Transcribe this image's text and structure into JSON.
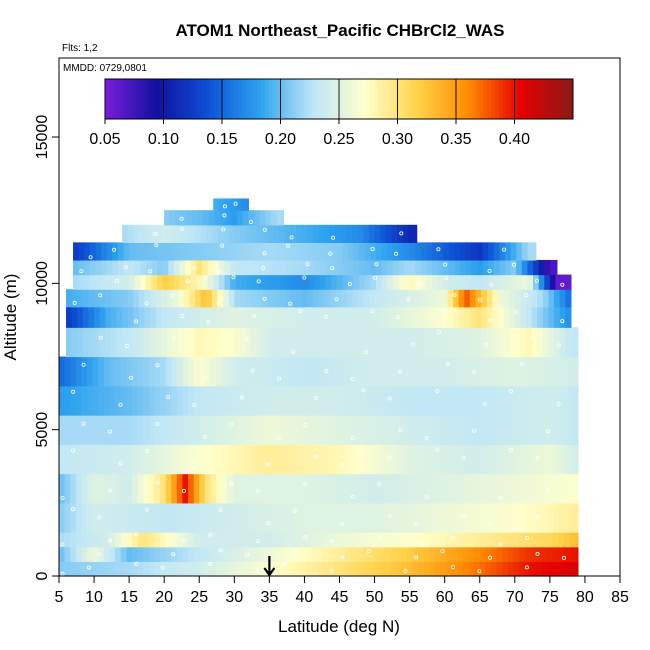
{
  "chart_data": {
    "type": "heatmap",
    "title": "ATOM1 Northeast_Pacific CHBrCl2_WAS",
    "annotations": [
      "Flts: 1,2",
      "MMDD: 0729,0801"
    ],
    "xlabel": "Latitude (deg N)",
    "ylabel": "Altitude (m)",
    "xlim": [
      5,
      85
    ],
    "ylim": [
      0,
      17700
    ],
    "x_ticks": [
      "5",
      "10",
      "15",
      "20",
      "25",
      "30",
      "35",
      "40",
      "45",
      "50",
      "55",
      "60",
      "65",
      "70",
      "75",
      "80",
      "85"
    ],
    "y_ticks": [
      "0",
      "5000",
      "10000",
      "15000"
    ],
    "colorbar": {
      "range": [
        0.05,
        0.45
      ],
      "ticks": [
        "0.05",
        "0.10",
        "0.15",
        "0.20",
        "0.25",
        "0.30",
        "0.35",
        "0.40"
      ],
      "colors": [
        "#7a1fd9",
        "#1010a0",
        "#0d52d6",
        "#2fa3ef",
        "#bfe6f7",
        "#ffffcc",
        "#ffd24a",
        "#ff8a00",
        "#e60000",
        "#8b1a1a"
      ]
    },
    "marker": {
      "label": "arrow",
      "x": 35
    },
    "altitude_bands": [
      {
        "alt": [
          0,
          500
        ],
        "lat": [
          5,
          79
        ],
        "values": [
          [
            5,
            0.21
          ],
          [
            15,
            0.22
          ],
          [
            25,
            0.24
          ],
          [
            35,
            0.27
          ],
          [
            45,
            0.3
          ],
          [
            55,
            0.33
          ],
          [
            65,
            0.37
          ],
          [
            72,
            0.4
          ],
          [
            79,
            0.41
          ]
        ]
      },
      {
        "alt": [
          500,
          1000
        ],
        "lat": [
          5,
          79
        ],
        "values": [
          [
            5,
            0.2
          ],
          [
            10,
            0.26
          ],
          [
            15,
            0.2
          ],
          [
            25,
            0.23
          ],
          [
            35,
            0.26
          ],
          [
            45,
            0.29
          ],
          [
            55,
            0.32
          ],
          [
            65,
            0.36
          ],
          [
            72,
            0.39
          ],
          [
            79,
            0.4
          ]
        ]
      },
      {
        "alt": [
          1000,
          1500
        ],
        "lat": [
          5,
          79
        ],
        "values": [
          [
            5,
            0.22
          ],
          [
            12,
            0.24
          ],
          [
            17,
            0.3
          ],
          [
            25,
            0.24
          ],
          [
            35,
            0.24
          ],
          [
            45,
            0.26
          ],
          [
            55,
            0.27
          ],
          [
            65,
            0.29
          ],
          [
            75,
            0.31
          ],
          [
            79,
            0.33
          ]
        ]
      },
      {
        "alt": [
          1500,
          2500
        ],
        "lat": [
          5,
          79
        ],
        "values": [
          [
            5,
            0.21
          ],
          [
            10,
            0.24
          ],
          [
            20,
            0.23
          ],
          [
            30,
            0.24
          ],
          [
            40,
            0.25
          ],
          [
            50,
            0.25
          ],
          [
            60,
            0.26
          ],
          [
            70,
            0.27
          ],
          [
            79,
            0.29
          ]
        ]
      },
      {
        "alt": [
          2500,
          3500
        ],
        "lat": [
          5,
          79
        ],
        "values": [
          [
            5,
            0.2
          ],
          [
            10,
            0.25
          ],
          [
            15,
            0.24
          ],
          [
            20,
            0.3
          ],
          [
            23,
            0.4
          ],
          [
            26,
            0.3
          ],
          [
            30,
            0.25
          ],
          [
            40,
            0.25
          ],
          [
            50,
            0.24
          ],
          [
            60,
            0.25
          ],
          [
            70,
            0.26
          ],
          [
            79,
            0.27
          ]
        ]
      },
      {
        "alt": [
          3500,
          4500
        ],
        "lat": [
          5,
          79
        ],
        "values": [
          [
            5,
            0.23
          ],
          [
            15,
            0.24
          ],
          [
            25,
            0.27
          ],
          [
            35,
            0.29
          ],
          [
            45,
            0.28
          ],
          [
            55,
            0.25
          ],
          [
            65,
            0.24
          ],
          [
            75,
            0.26
          ],
          [
            79,
            0.24
          ]
        ]
      },
      {
        "alt": [
          4500,
          5500
        ],
        "lat": [
          5,
          79
        ],
        "values": [
          [
            5,
            0.22
          ],
          [
            15,
            0.22
          ],
          [
            25,
            0.24
          ],
          [
            35,
            0.26
          ],
          [
            45,
            0.25
          ],
          [
            55,
            0.24
          ],
          [
            65,
            0.23
          ],
          [
            75,
            0.24
          ],
          [
            79,
            0.23
          ]
        ]
      },
      {
        "alt": [
          5500,
          6500
        ],
        "lat": [
          5,
          79
        ],
        "values": [
          [
            5,
            0.18
          ],
          [
            15,
            0.2
          ],
          [
            25,
            0.23
          ],
          [
            35,
            0.24
          ],
          [
            45,
            0.24
          ],
          [
            55,
            0.23
          ],
          [
            65,
            0.23
          ],
          [
            75,
            0.24
          ],
          [
            79,
            0.23
          ]
        ]
      },
      {
        "alt": [
          6500,
          7500
        ],
        "lat": [
          5,
          79
        ],
        "values": [
          [
            5,
            0.15
          ],
          [
            12,
            0.2
          ],
          [
            20,
            0.22
          ],
          [
            25,
            0.27
          ],
          [
            30,
            0.24
          ],
          [
            40,
            0.23
          ],
          [
            50,
            0.24
          ],
          [
            60,
            0.24
          ],
          [
            70,
            0.25
          ],
          [
            79,
            0.24
          ]
        ]
      },
      {
        "alt": [
          7500,
          8500
        ],
        "lat": [
          6,
          79
        ],
        "values": [
          [
            6,
            0.21
          ],
          [
            15,
            0.23
          ],
          [
            25,
            0.28
          ],
          [
            30,
            0.27
          ],
          [
            35,
            0.24
          ],
          [
            45,
            0.24
          ],
          [
            55,
            0.24
          ],
          [
            65,
            0.25
          ],
          [
            72,
            0.28
          ],
          [
            78,
            0.23
          ]
        ]
      },
      {
        "alt": [
          8500,
          9200
        ],
        "lat": [
          6,
          78
        ],
        "values": [
          [
            6,
            0.12
          ],
          [
            12,
            0.19
          ],
          [
            20,
            0.23
          ],
          [
            30,
            0.25
          ],
          [
            40,
            0.24
          ],
          [
            50,
            0.24
          ],
          [
            60,
            0.27
          ],
          [
            65,
            0.3
          ],
          [
            72,
            0.23
          ],
          [
            78,
            0.17
          ]
        ]
      },
      {
        "alt": [
          9200,
          9800
        ],
        "lat": [
          6,
          78
        ],
        "values": [
          [
            6,
            0.19
          ],
          [
            15,
            0.21
          ],
          [
            22,
            0.26
          ],
          [
            26,
            0.33
          ],
          [
            30,
            0.22
          ],
          [
            40,
            0.2
          ],
          [
            50,
            0.23
          ],
          [
            60,
            0.26
          ],
          [
            63,
            0.38
          ],
          [
            68,
            0.26
          ],
          [
            74,
            0.22
          ],
          [
            78,
            0.15
          ]
        ]
      },
      {
        "alt": [
          9800,
          10300
        ],
        "lat": [
          7,
          78
        ],
        "values": [
          [
            7,
            0.22
          ],
          [
            15,
            0.24
          ],
          [
            20,
            0.32
          ],
          [
            25,
            0.28
          ],
          [
            30,
            0.19
          ],
          [
            40,
            0.17
          ],
          [
            50,
            0.22
          ],
          [
            55,
            0.28
          ],
          [
            60,
            0.24
          ],
          [
            65,
            0.23
          ],
          [
            72,
            0.26
          ],
          [
            76,
            0.06
          ]
        ]
      },
      {
        "alt": [
          10300,
          10800
        ],
        "lat": [
          7,
          76
        ],
        "values": [
          [
            7,
            0.2
          ],
          [
            15,
            0.23
          ],
          [
            20,
            0.21
          ],
          [
            25,
            0.3
          ],
          [
            30,
            0.23
          ],
          [
            40,
            0.22
          ],
          [
            50,
            0.2
          ],
          [
            55,
            0.22
          ],
          [
            65,
            0.18
          ],
          [
            70,
            0.21
          ],
          [
            75,
            0.07
          ]
        ]
      },
      {
        "alt": [
          10800,
          11400
        ],
        "lat": [
          7,
          73
        ],
        "values": [
          [
            7,
            0.12
          ],
          [
            15,
            0.2
          ],
          [
            25,
            0.21
          ],
          [
            35,
            0.22
          ],
          [
            45,
            0.21
          ],
          [
            55,
            0.17
          ],
          [
            65,
            0.12
          ],
          [
            72,
            0.22
          ]
        ]
      },
      {
        "alt": [
          11400,
          12000
        ],
        "lat": [
          14,
          56
        ],
        "values": [
          [
            14,
            0.22
          ],
          [
            20,
            0.24
          ],
          [
            30,
            0.21
          ],
          [
            40,
            0.19
          ],
          [
            48,
            0.17
          ],
          [
            55,
            0.11
          ]
        ]
      },
      {
        "alt": [
          12000,
          12500
        ],
        "lat": [
          20,
          37
        ],
        "values": [
          [
            20,
            0.21
          ],
          [
            25,
            0.2
          ],
          [
            30,
            0.18
          ],
          [
            36,
            0.22
          ]
        ]
      },
      {
        "alt": [
          12500,
          12900
        ],
        "lat": [
          27,
          32
        ],
        "values": [
          [
            27,
            0.19
          ],
          [
            32,
            0.17
          ]
        ]
      }
    ]
  }
}
